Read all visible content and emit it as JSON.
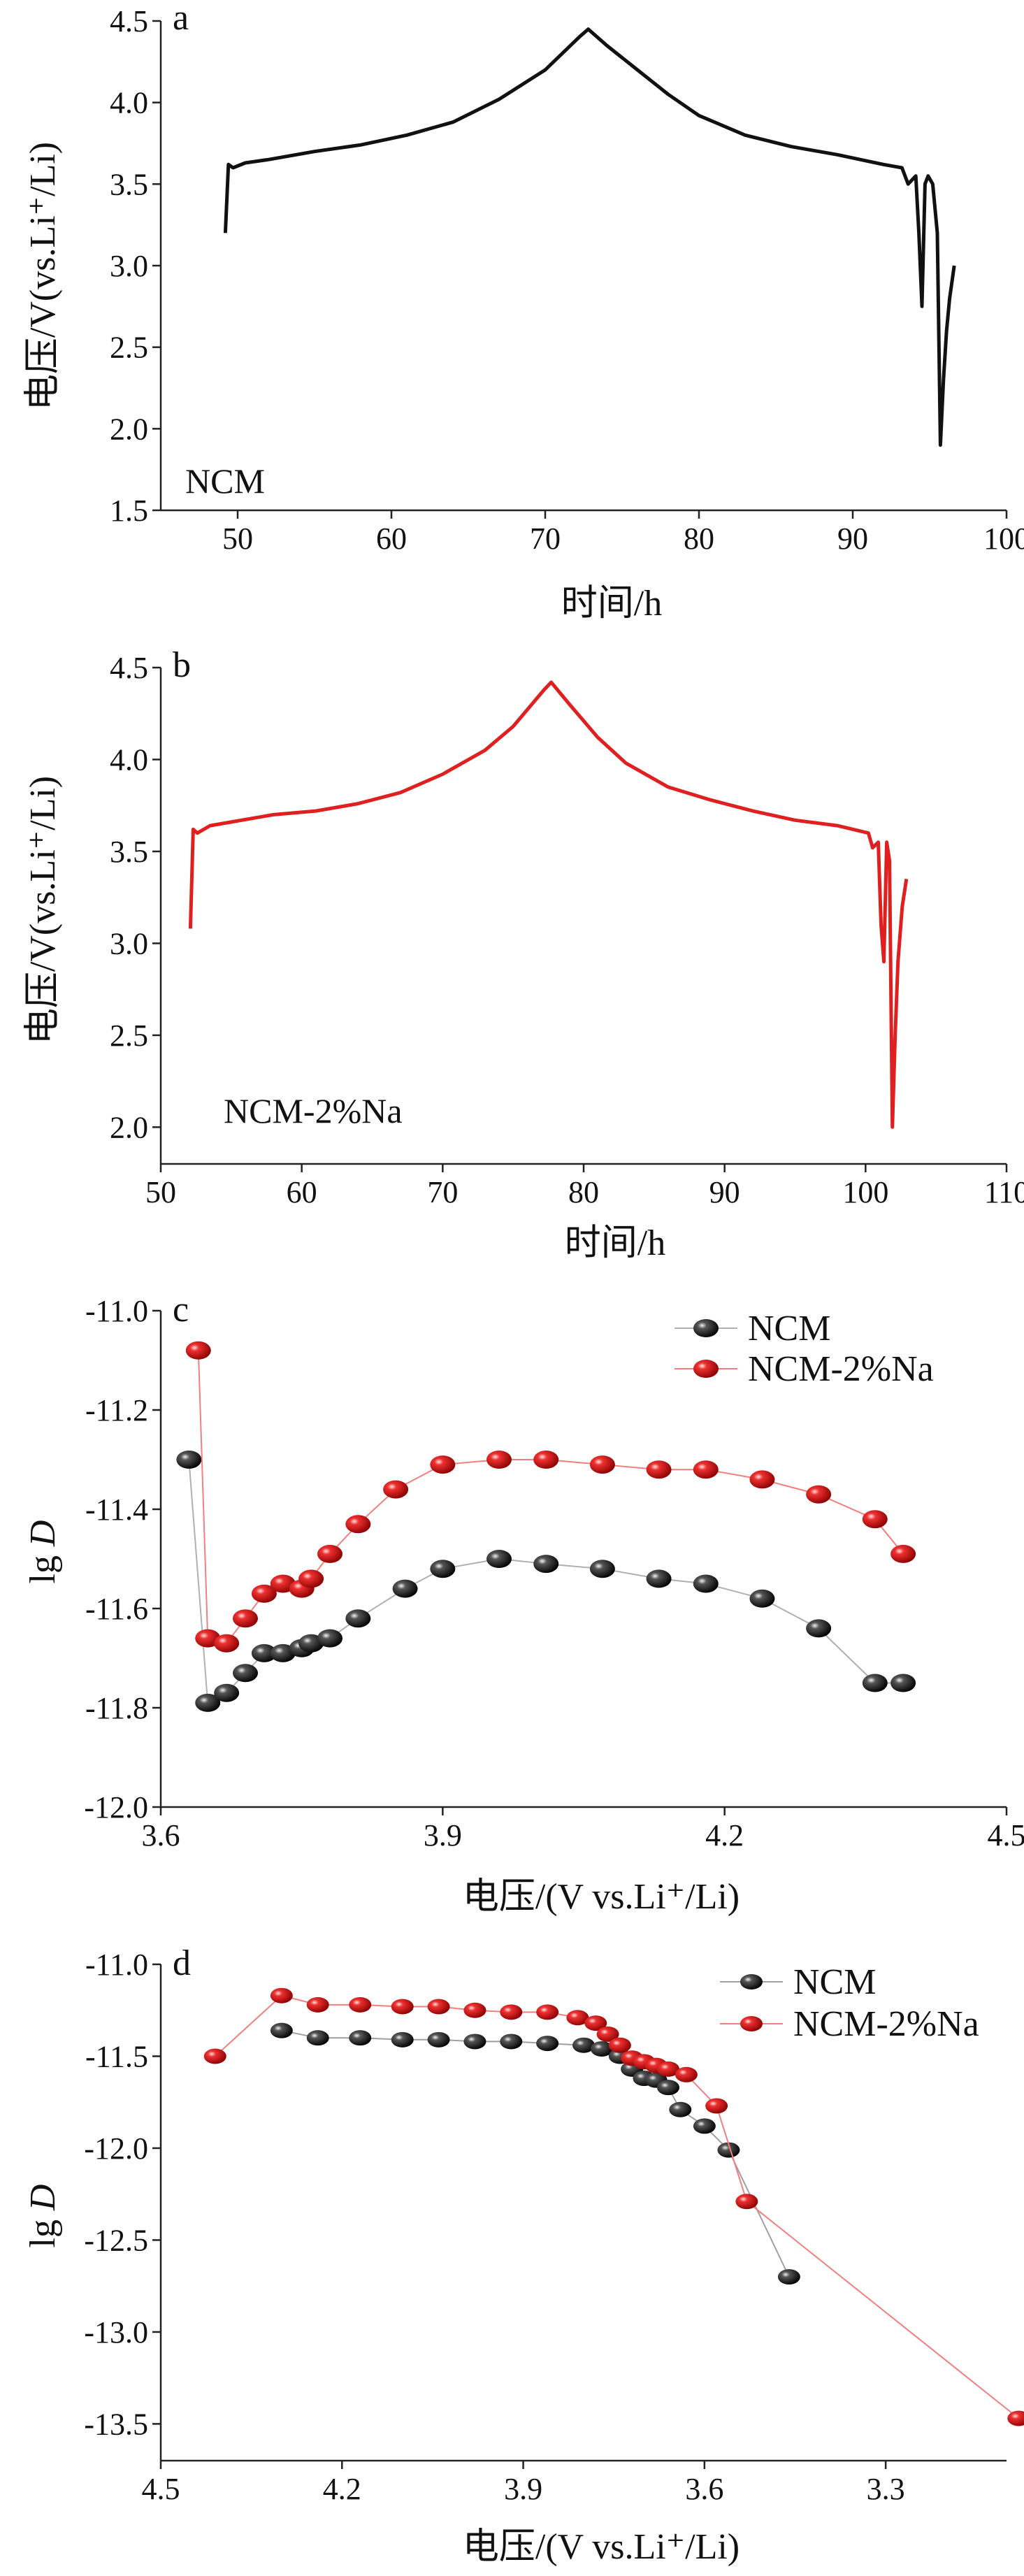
{
  "chart_data": [
    {
      "panel": "a",
      "type": "line",
      "xlabel": "时间/h",
      "ylabel": "电压/V(vs.Li⁺/Li)",
      "xlim": [
        45,
        100
      ],
      "ylim": [
        1.5,
        4.5
      ],
      "xticks": [
        "50",
        "60",
        "70",
        "80",
        "90",
        "100"
      ],
      "yticks": [
        "1.5",
        "2.0",
        "2.5",
        "3.0",
        "3.5",
        "4.0",
        "4.5"
      ],
      "annotation": "NCM",
      "series": [
        {
          "color": "#111111",
          "x": [
            49.2,
            49.4,
            49.7,
            50.5,
            52,
            55,
            58,
            61,
            64,
            67,
            70,
            72.2,
            72.8,
            74,
            76,
            78,
            80,
            83,
            86,
            89,
            92,
            93.2,
            93.6,
            94.1,
            94.3,
            94.5,
            94.7,
            94.9,
            95.2,
            95.5,
            95.7,
            95.9,
            96.1,
            96.3,
            96.6
          ],
          "y": [
            3.2,
            3.62,
            3.6,
            3.63,
            3.65,
            3.7,
            3.74,
            3.8,
            3.88,
            4.02,
            4.2,
            4.4,
            4.45,
            4.35,
            4.2,
            4.05,
            3.92,
            3.8,
            3.73,
            3.68,
            3.62,
            3.6,
            3.5,
            3.55,
            3.2,
            2.75,
            3.5,
            3.55,
            3.5,
            3.2,
            1.9,
            2.3,
            2.6,
            2.8,
            3.0
          ]
        }
      ]
    },
    {
      "panel": "b",
      "type": "line",
      "xlabel": "时间/h",
      "ylabel": "电压/V(vs.Li⁺/Li)",
      "xlim": [
        50,
        110
      ],
      "ylim": [
        1.8,
        4.5
      ],
      "xticks": [
        "50",
        "60",
        "70",
        "80",
        "90",
        "100",
        "110"
      ],
      "yticks": [
        "2.0",
        "2.5",
        "3.0",
        "3.5",
        "4.0",
        "4.5"
      ],
      "annotation": "NCM-2%Na",
      "series": [
        {
          "color": "#e02020",
          "x": [
            52.1,
            52.3,
            52.6,
            53.5,
            55,
            58,
            61,
            64,
            67,
            70,
            73,
            75,
            77.2,
            77.7,
            79,
            81,
            83,
            86,
            89,
            92,
            95,
            98,
            100.2,
            100.5,
            100.9,
            101.1,
            101.3,
            101.5,
            101.7,
            101.9,
            102.1,
            102.3,
            102.6,
            102.9
          ],
          "y": [
            3.08,
            3.62,
            3.6,
            3.64,
            3.66,
            3.7,
            3.72,
            3.76,
            3.82,
            3.92,
            4.05,
            4.18,
            4.38,
            4.42,
            4.3,
            4.12,
            3.98,
            3.85,
            3.78,
            3.72,
            3.67,
            3.64,
            3.6,
            3.52,
            3.55,
            3.1,
            2.9,
            3.55,
            3.45,
            2.0,
            2.5,
            2.9,
            3.2,
            3.35
          ]
        }
      ]
    },
    {
      "panel": "c",
      "type": "line",
      "xlabel": "电压/(V vs.Li⁺/Li)",
      "ylabel": "lg D",
      "xlim": [
        3.6,
        4.5
      ],
      "ylim": [
        -12.0,
        -11.0
      ],
      "xticks": [
        "3.6",
        "3.9",
        "4.2",
        "4.5"
      ],
      "yticks": [
        "-11.0",
        "-11.2",
        "-11.4",
        "-11.6",
        "-11.8",
        "-12.0"
      ],
      "legend": "top-right",
      "series": [
        {
          "name": "NCM",
          "color": "#222222",
          "x": [
            3.63,
            3.65,
            3.67,
            3.69,
            3.71,
            3.73,
            3.75,
            3.76,
            3.78,
            3.81,
            3.86,
            3.9,
            3.96,
            4.01,
            4.07,
            4.13,
            4.18,
            4.24,
            4.3,
            4.36,
            4.39
          ],
          "y": [
            -11.3,
            -11.79,
            -11.77,
            -11.73,
            -11.69,
            -11.69,
            -11.68,
            -11.67,
            -11.66,
            -11.62,
            -11.56,
            -11.52,
            -11.5,
            -11.51,
            -11.52,
            -11.54,
            -11.55,
            -11.58,
            -11.64,
            -11.75,
            -11.75
          ]
        },
        {
          "name": "NCM-2%Na",
          "color": "#e02020",
          "x": [
            3.64,
            3.65,
            3.67,
            3.69,
            3.71,
            3.73,
            3.75,
            3.76,
            3.78,
            3.81,
            3.85,
            3.9,
            3.96,
            4.01,
            4.07,
            4.13,
            4.18,
            4.24,
            4.3,
            4.36,
            4.39
          ],
          "y": [
            -11.08,
            -11.66,
            -11.67,
            -11.62,
            -11.57,
            -11.55,
            -11.56,
            -11.54,
            -11.49,
            -11.43,
            -11.36,
            -11.31,
            -11.3,
            -11.3,
            -11.31,
            -11.32,
            -11.32,
            -11.34,
            -11.37,
            -11.42,
            -11.49
          ]
        }
      ]
    },
    {
      "panel": "d",
      "type": "line",
      "xlabel": "电压/(V vs.Li⁺/Li)",
      "ylabel": "lg D",
      "xlim": [
        4.5,
        3.1
      ],
      "ylim": [
        -13.7,
        -11.0
      ],
      "xticks": [
        "4.5",
        "4.2",
        "3.9",
        "3.6",
        "3.3"
      ],
      "yticks": [
        "-11.0",
        "-11.5",
        "-12.0",
        "-12.5",
        "-13.0",
        "-13.5"
      ],
      "legend": "top-right",
      "series": [
        {
          "name": "NCM",
          "color": "#222222",
          "x": [
            4.3,
            4.24,
            4.17,
            4.1,
            4.04,
            3.98,
            3.92,
            3.86,
            3.8,
            3.77,
            3.74,
            3.72,
            3.7,
            3.68,
            3.66,
            3.64,
            3.6,
            3.56,
            3.46
          ],
          "y": [
            -11.36,
            -11.4,
            -11.4,
            -11.41,
            -11.41,
            -11.42,
            -11.42,
            -11.43,
            -11.44,
            -11.46,
            -11.5,
            -11.57,
            -11.62,
            -11.63,
            -11.67,
            -11.79,
            -11.88,
            -12.01,
            -12.7
          ]
        },
        {
          "name": "NCM-2%Na",
          "color": "#e02020",
          "x": [
            4.41,
            4.3,
            4.24,
            4.17,
            4.1,
            4.04,
            3.98,
            3.92,
            3.86,
            3.81,
            3.78,
            3.76,
            3.74,
            3.72,
            3.7,
            3.68,
            3.66,
            3.63,
            3.58,
            3.53,
            3.08
          ],
          "y": [
            -11.5,
            -11.17,
            -11.22,
            -11.22,
            -11.23,
            -11.23,
            -11.25,
            -11.26,
            -11.26,
            -11.29,
            -11.32,
            -11.38,
            -11.44,
            -11.51,
            -11.53,
            -11.55,
            -11.57,
            -11.6,
            -11.77,
            -12.29,
            -13.47
          ]
        }
      ]
    }
  ]
}
